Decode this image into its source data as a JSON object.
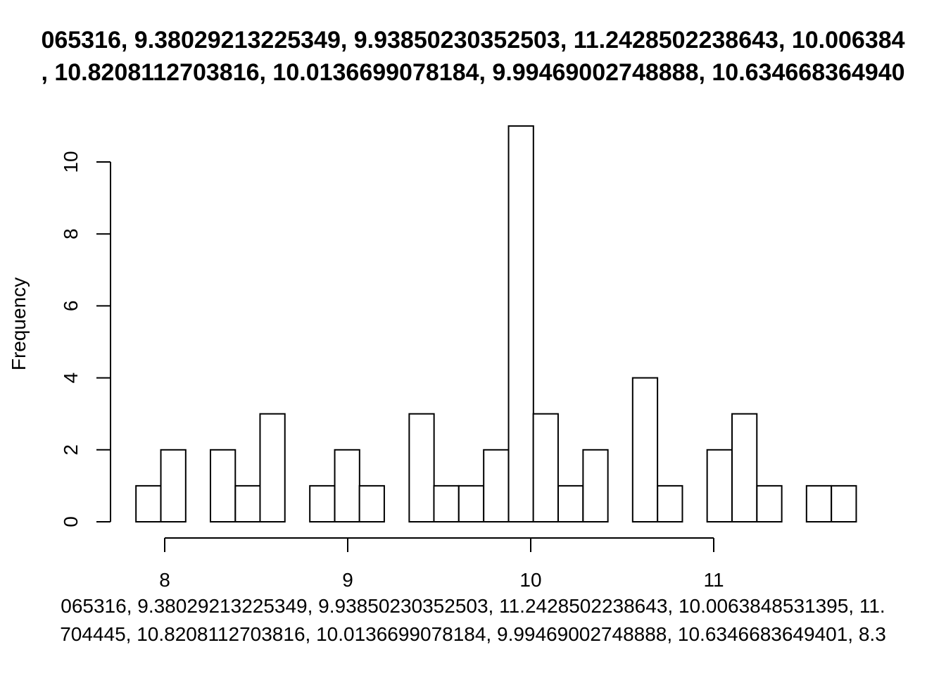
{
  "chart_data": {
    "type": "bar",
    "title_lines": [
      "065316, 9.38029213225349, 9.93850230352503, 11.2428502238643, 10.006384",
      ", 10.8208112703816, 10.0136699078184, 9.99469002748888, 10.634668364940"
    ],
    "xlabel_lines": [
      "065316, 9.38029213225349, 9.93850230352503, 11.2428502238643, 10.0063848531395, 11.",
      "704445, 10.8208112703816, 10.0136699078184, 9.99469002748888, 10.6346683649401, 8.3"
    ],
    "ylabel": "Frequency",
    "bin_width": 0.1357,
    "bins": [
      {
        "x0": 7.843,
        "count": 1
      },
      {
        "x0": 7.979,
        "count": 2
      },
      {
        "x0": 8.114,
        "count": 0
      },
      {
        "x0": 8.25,
        "count": 2
      },
      {
        "x0": 8.386,
        "count": 1
      },
      {
        "x0": 8.521,
        "count": 3
      },
      {
        "x0": 8.657,
        "count": 0
      },
      {
        "x0": 8.793,
        "count": 1
      },
      {
        "x0": 8.929,
        "count": 2
      },
      {
        "x0": 9.064,
        "count": 1
      },
      {
        "x0": 9.2,
        "count": 0
      },
      {
        "x0": 9.336,
        "count": 3
      },
      {
        "x0": 9.471,
        "count": 1
      },
      {
        "x0": 9.607,
        "count": 1
      },
      {
        "x0": 9.743,
        "count": 2
      },
      {
        "x0": 9.879,
        "count": 11
      },
      {
        "x0": 10.014,
        "count": 3
      },
      {
        "x0": 10.15,
        "count": 1
      },
      {
        "x0": 10.286,
        "count": 2
      },
      {
        "x0": 10.421,
        "count": 0
      },
      {
        "x0": 10.557,
        "count": 4
      },
      {
        "x0": 10.693,
        "count": 1
      },
      {
        "x0": 10.829,
        "count": 0
      },
      {
        "x0": 10.964,
        "count": 2
      },
      {
        "x0": 11.1,
        "count": 3
      },
      {
        "x0": 11.236,
        "count": 1
      },
      {
        "x0": 11.371,
        "count": 0
      },
      {
        "x0": 11.507,
        "count": 1
      },
      {
        "x0": 11.643,
        "count": 1
      }
    ],
    "xlim": [
      8,
      11
    ],
    "ylim": [
      0,
      10
    ],
    "x_ticks": [
      8,
      9,
      10,
      11
    ],
    "y_ticks": [
      0,
      2,
      4,
      6,
      8,
      10
    ],
    "grid": false
  }
}
